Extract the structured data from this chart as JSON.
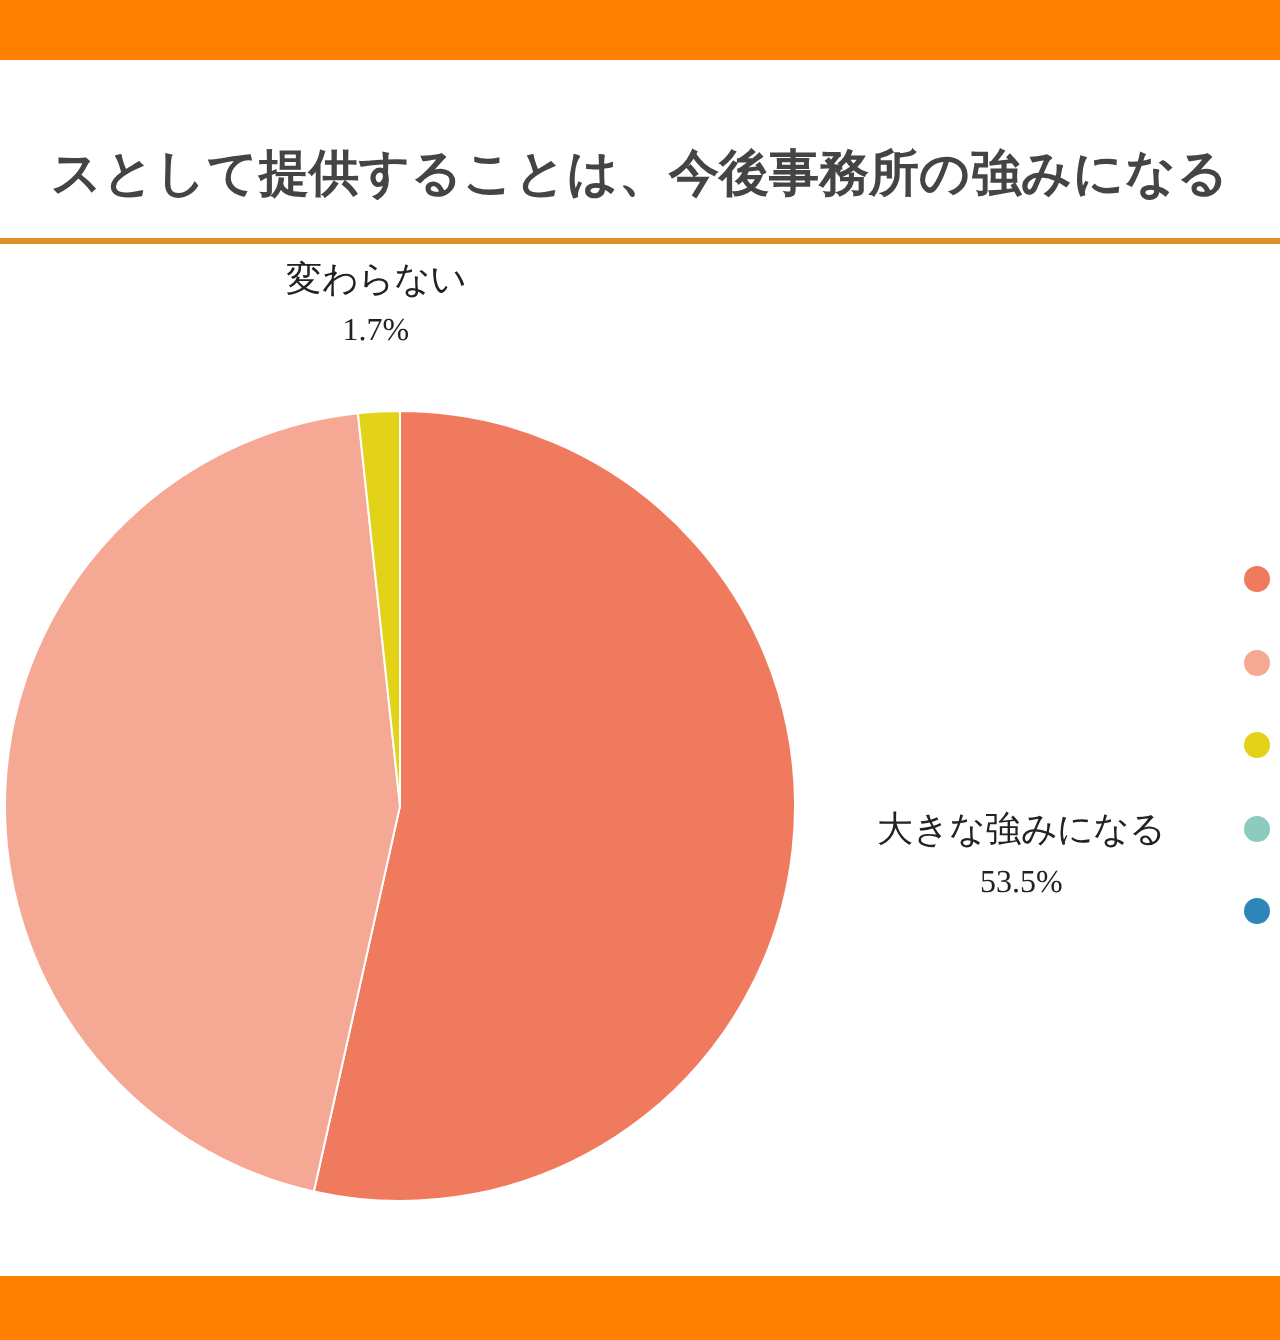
{
  "chart_data": {
    "type": "pie",
    "title": "スとして提供することは、今後事務所の強みになる",
    "categories": [
      "大きな強みになる",
      null,
      "変わらない",
      null,
      null
    ],
    "values": [
      53.5,
      44.8,
      1.7,
      0,
      0
    ],
    "colors": [
      "#f07a5e",
      "#f5a894",
      "#e3d318",
      "#8ccbbe",
      "#2e86b8"
    ],
    "value_labels": [
      "53.5%",
      null,
      "1.7%",
      null,
      null
    ]
  }
}
